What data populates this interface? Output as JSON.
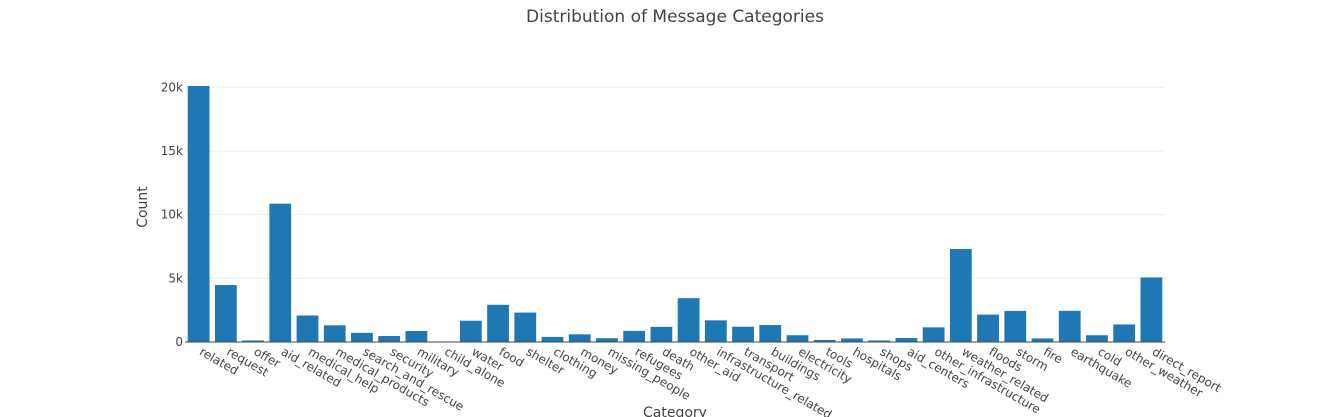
{
  "chart_data": {
    "type": "bar",
    "title": "Distribution of Message Categories",
    "xlabel": "Category",
    "ylabel": "Count",
    "ylim": [
      0,
      20100
    ],
    "yticks": [
      0,
      5000,
      10000,
      15000,
      20000
    ],
    "ytick_labels": [
      "0",
      "5k",
      "10k",
      "15k",
      "20k"
    ],
    "grid": true,
    "bar_color": "#1f77b4",
    "categories": [
      "related",
      "request",
      "offer",
      "aid_related",
      "medical_help",
      "medical_products",
      "search_and_rescue",
      "security",
      "military",
      "child_alone",
      "water",
      "food",
      "shelter",
      "clothing",
      "money",
      "missing_people",
      "refugees",
      "death",
      "other_aid",
      "infrastructure_related",
      "transport",
      "buildings",
      "electricity",
      "tools",
      "hospitals",
      "shops",
      "aid_centers",
      "other_infrastructure",
      "weather_related",
      "floods",
      "storm",
      "fire",
      "earthquake",
      "cold",
      "other_weather",
      "direct_report"
    ],
    "values": [
      20100,
      4470,
      120,
      10860,
      2080,
      1310,
      720,
      470,
      860,
      0,
      1670,
      2920,
      2310,
      400,
      600,
      300,
      870,
      1190,
      3440,
      1700,
      1200,
      1330,
      530,
      160,
      280,
      120,
      310,
      1150,
      7300,
      2150,
      2440,
      280,
      2450,
      530,
      1380,
      5070
    ]
  }
}
